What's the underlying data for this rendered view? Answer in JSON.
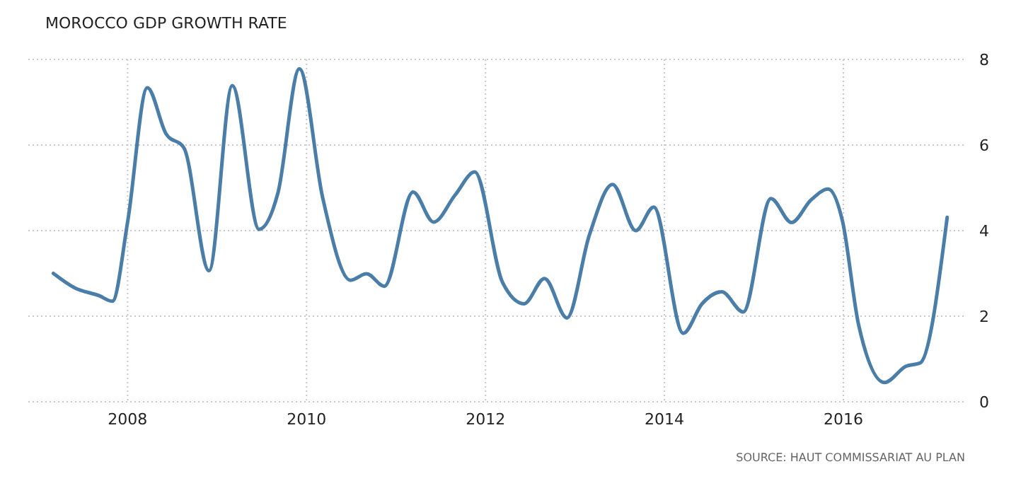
{
  "chart_data": {
    "type": "line",
    "title": "MOROCCO GDP GROWTH RATE",
    "annotations": [
      "SOURCE: HAUT COMMISSARIAT AU PLAN"
    ],
    "x": [
      2007.17,
      2007.41,
      2007.68,
      2007.83,
      2008.0,
      2008.22,
      2008.43,
      2008.63,
      2008.91,
      2009.17,
      2009.47,
      2009.68,
      2009.92,
      2010.18,
      2010.49,
      2010.67,
      2010.87,
      2011.19,
      2011.42,
      2011.66,
      2011.88,
      2012.19,
      2012.43,
      2012.66,
      2012.91,
      2013.16,
      2013.42,
      2013.68,
      2013.88,
      2014.21,
      2014.42,
      2014.64,
      2014.88,
      2015.19,
      2015.42,
      2015.64,
      2015.83,
      2015.99,
      2016.17,
      2016.46,
      2016.7,
      2016.86,
      2017.16
    ],
    "series": [
      {
        "color": "#4a7ea9",
        "values": [
          3.0,
          2.66,
          2.48,
          2.35,
          4.2,
          7.34,
          6.26,
          5.93,
          3.06,
          7.39,
          4.03,
          4.88,
          7.78,
          4.77,
          2.84,
          2.99,
          2.7,
          4.9,
          4.2,
          4.83,
          5.37,
          2.79,
          2.29,
          2.88,
          1.96,
          3.89,
          5.08,
          4.0,
          4.55,
          1.6,
          2.29,
          2.57,
          2.1,
          4.75,
          4.19,
          4.72,
          4.97,
          4.22,
          1.8,
          0.45,
          0.83,
          0.91,
          4.31
        ]
      }
    ],
    "xlim": [
      2006.89,
      2017.36
    ],
    "xticks": [
      2008,
      2010,
      2012,
      2014,
      2016
    ],
    "ylim": [
      0,
      8
    ],
    "yticks": [
      0,
      2,
      4,
      6,
      8
    ],
    "grid": true,
    "marker": "none",
    "line_style": "solid"
  }
}
